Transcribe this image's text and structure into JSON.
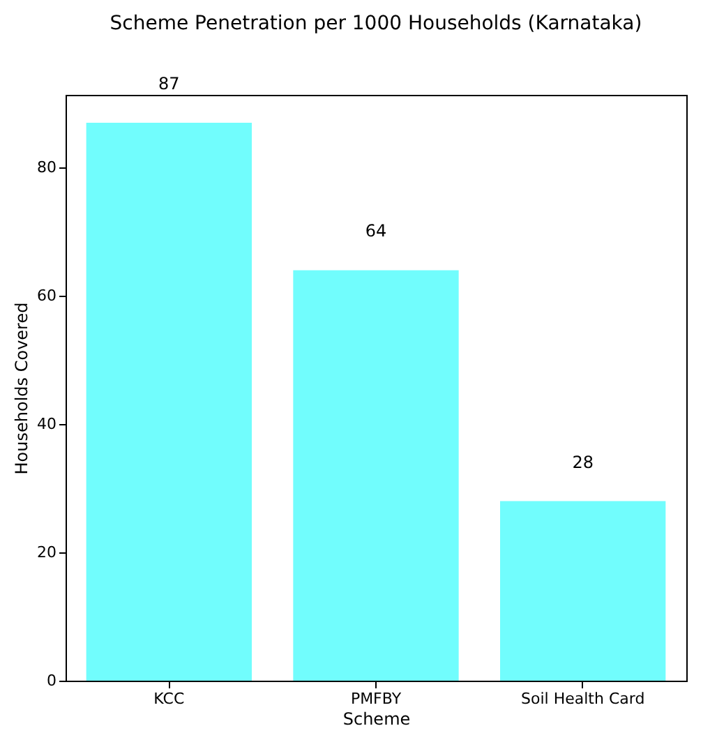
{
  "chart_data": {
    "type": "bar",
    "title": "Scheme Penetration per 1000 Households (Karnataka)",
    "xlabel": "Scheme",
    "ylabel": "Households Covered",
    "categories": [
      "KCC",
      "PMFBY",
      "Soil Health Card"
    ],
    "values": [
      87,
      64,
      28
    ],
    "color": "#71fdfd",
    "ylim": [
      0,
      91.35
    ],
    "yticks": [
      0,
      20,
      40,
      60,
      80
    ],
    "grid": false,
    "data_labels": true
  }
}
